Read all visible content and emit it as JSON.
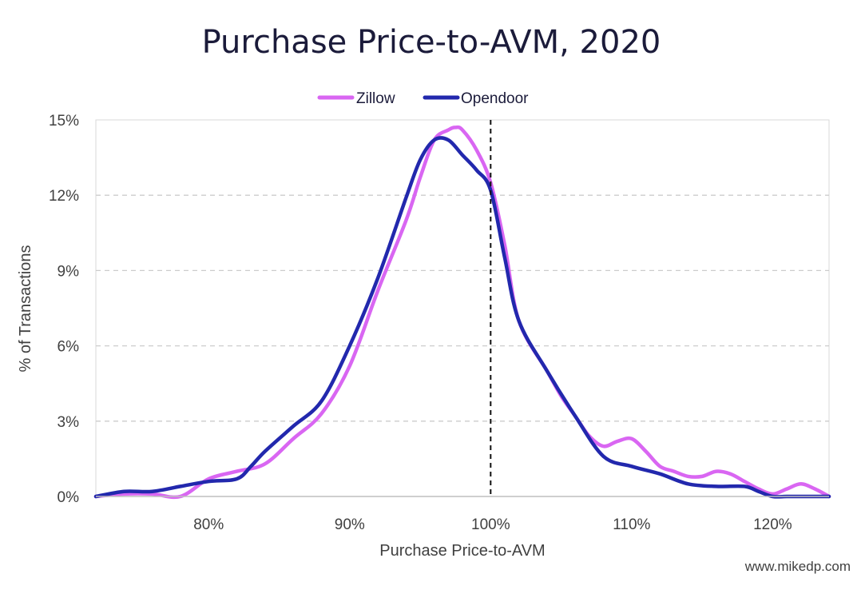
{
  "chart_data": {
    "type": "line",
    "title": "Purchase Price-to-AVM, 2020",
    "xlabel": "Purchase Price-to-AVM",
    "ylabel": "% of Transactions",
    "xlim": [
      72,
      124
    ],
    "ylim": [
      0,
      15
    ],
    "x_ticks": [
      80,
      90,
      100,
      110,
      120
    ],
    "x_tick_labels": [
      "80%",
      "90%",
      "100%",
      "110%",
      "120%"
    ],
    "y_ticks": [
      0,
      3,
      6,
      9,
      12,
      15
    ],
    "y_tick_labels": [
      "0%",
      "3%",
      "6%",
      "9%",
      "12%",
      "15%"
    ],
    "grid": "horizontal-dashed",
    "legend_position": "top-center",
    "reference_line": {
      "x": 100,
      "style": "dashed",
      "color": "#111111"
    },
    "series": [
      {
        "name": "Zillow",
        "color": "#d966f2",
        "x": [
          72,
          74,
          76,
          78,
          80,
          82,
          84,
          86,
          88,
          90,
          92,
          94,
          95,
          96,
          97,
          97.5,
          98,
          99,
          100,
          101,
          102,
          104,
          105,
          106,
          107,
          108,
          109,
          110,
          111,
          112,
          113,
          114,
          115,
          116,
          117,
          118,
          119,
          120,
          121,
          122,
          123,
          124
        ],
        "values": [
          0,
          0.1,
          0.1,
          0,
          0.7,
          1.0,
          1.3,
          2.3,
          3.3,
          5.2,
          8.2,
          11.0,
          12.7,
          14.2,
          14.6,
          14.7,
          14.6,
          13.8,
          12.5,
          10.0,
          7.0,
          5.0,
          4.0,
          3.2,
          2.4,
          2.0,
          2.2,
          2.3,
          1.8,
          1.2,
          1.0,
          0.8,
          0.8,
          1.0,
          0.9,
          0.6,
          0.3,
          0.1,
          0.3,
          0.5,
          0.3,
          0
        ]
      },
      {
        "name": "Opendoor",
        "color": "#2228ad",
        "x": [
          72,
          74,
          76,
          78,
          80,
          82,
          83,
          84,
          86,
          88,
          90,
          92,
          94,
          95,
          96,
          97,
          98,
          99,
          100,
          101,
          102,
          104,
          106,
          108,
          110,
          112,
          114,
          116,
          118,
          119,
          120,
          121,
          122,
          124
        ],
        "values": [
          0,
          0.2,
          0.2,
          0.4,
          0.6,
          0.7,
          1.2,
          1.8,
          2.8,
          3.8,
          6.0,
          8.7,
          11.9,
          13.4,
          14.2,
          14.2,
          13.6,
          13.0,
          12.2,
          9.5,
          7.0,
          5.0,
          3.2,
          1.6,
          1.2,
          0.9,
          0.5,
          0.4,
          0.4,
          0.2,
          0,
          0,
          0,
          0
        ]
      }
    ]
  },
  "watermark": "www.mikedp.com"
}
